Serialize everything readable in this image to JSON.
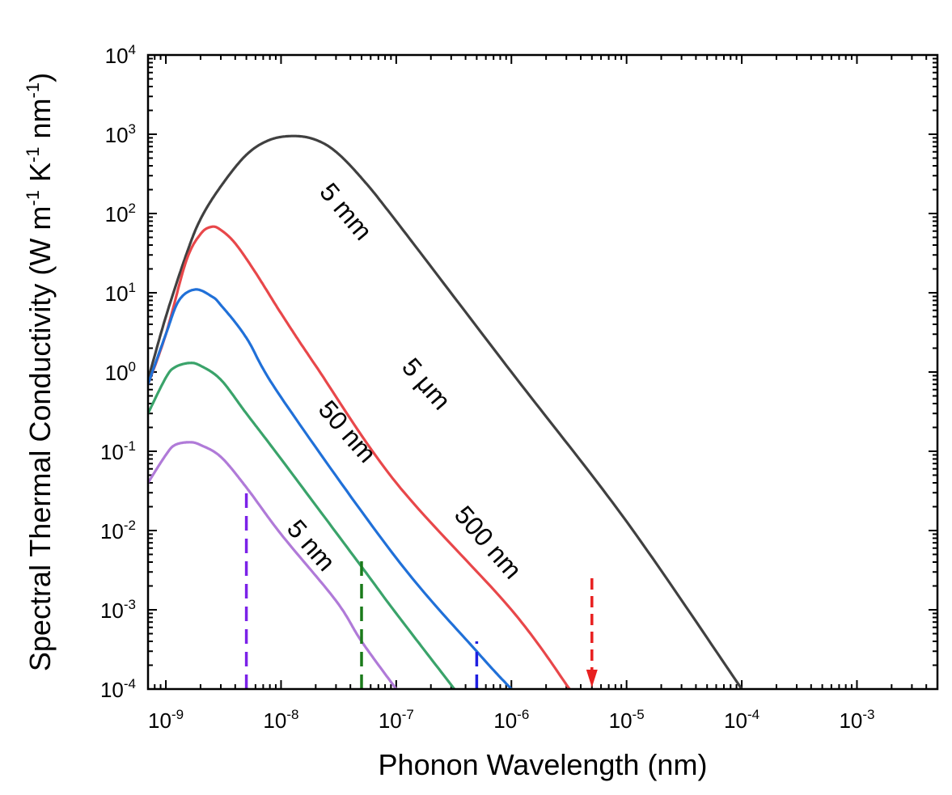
{
  "chart_data": {
    "type": "line",
    "xscale": "log",
    "yscale": "log",
    "xlim": [
      7e-10,
      0.005
    ],
    "ylim": [
      0.0001,
      10000
    ],
    "xlabel": "Phonon Wavelength (nm)",
    "ylabel": {
      "text": "Spectral Thermal Conductivity (W m",
      "sup1": "-1",
      "mid1": " K",
      "sup2": "-1",
      "mid2": " nm",
      "sup3": "-1",
      "end": ")"
    },
    "xticks": [
      {
        "value": 1e-09,
        "base": "10",
        "exp": "-9"
      },
      {
        "value": 1e-08,
        "base": "10",
        "exp": "-8"
      },
      {
        "value": 1e-07,
        "base": "10",
        "exp": "-7"
      },
      {
        "value": 1e-06,
        "base": "10",
        "exp": "-6"
      },
      {
        "value": 1e-05,
        "base": "10",
        "exp": "-5"
      },
      {
        "value": 0.0001,
        "base": "10",
        "exp": "-4"
      },
      {
        "value": 0.001,
        "base": "10",
        "exp": "-3"
      }
    ],
    "yticks": [
      {
        "value": 0.0001,
        "base": "10",
        "exp": "-4"
      },
      {
        "value": 0.001,
        "base": "10",
        "exp": "-3"
      },
      {
        "value": 0.01,
        "base": "10",
        "exp": "-2"
      },
      {
        "value": 0.1,
        "base": "10",
        "exp": "-1"
      },
      {
        "value": 1,
        "base": "10",
        "exp": "0"
      },
      {
        "value": 10,
        "base": "10",
        "exp": "1"
      },
      {
        "value": 100,
        "base": "10",
        "exp": "2"
      },
      {
        "value": 1000,
        "base": "10",
        "exp": "3"
      },
      {
        "value": 10000,
        "base": "10",
        "exp": "4"
      }
    ],
    "series": [
      {
        "name": "5 mm",
        "color": "#404040",
        "x": [
          7e-10,
          1e-09,
          1.5e-09,
          2e-09,
          3e-09,
          5e-09,
          8e-09,
          1.3e-08,
          2e-08,
          3e-08,
          5e-08,
          1e-07,
          1e-06,
          1e-05,
          0.0001
        ],
        "y": [
          0.8,
          5,
          30,
          85,
          220,
          550,
          850,
          950,
          850,
          600,
          280,
          80,
          1.0,
          0.013,
          0.0001
        ]
      },
      {
        "name": "5 μm",
        "color": "#e8474a",
        "x": [
          7e-10,
          1e-09,
          1.5e-09,
          2e-09,
          2.5e-09,
          3e-09,
          4e-09,
          6e-09,
          1e-08,
          2e-08,
          1e-07,
          1e-06,
          3.2e-06
        ],
        "y": [
          0.7,
          3,
          25,
          55,
          68,
          62,
          42,
          18,
          5.5,
          1.2,
          0.04,
          0.001,
          0.0001
        ]
      },
      {
        "name": "500 nm",
        "color": "#2070d8",
        "x": [
          7e-10,
          1e-09,
          1.3e-09,
          1.8e-09,
          2.5e-09,
          3e-09,
          5e-09,
          1e-08,
          1e-07,
          5.2e-07,
          1e-06
        ],
        "y": [
          0.7,
          3,
          8,
          11,
          9,
          7,
          2.7,
          0.48,
          0.0045,
          0.00028,
          0.0001
        ]
      },
      {
        "name": "50 nm",
        "color": "#3aa36a",
        "x": [
          7e-10,
          1e-09,
          1.2e-09,
          1.6e-09,
          2e-09,
          3e-09,
          5e-09,
          1e-08,
          5e-08,
          1e-07,
          3.2e-07
        ],
        "y": [
          0.3,
          0.85,
          1.15,
          1.3,
          1.2,
          0.8,
          0.3,
          0.08,
          0.0035,
          0.0009,
          0.0001
        ]
      },
      {
        "name": "5 nm",
        "color": "#b07ad8",
        "x": [
          7e-10,
          1e-09,
          1.2e-09,
          1.6e-09,
          2e-09,
          3e-09,
          5e-09,
          1e-08,
          3e-08,
          5e-08,
          1e-07
        ],
        "y": [
          0.04,
          0.09,
          0.12,
          0.13,
          0.12,
          0.085,
          0.035,
          0.009,
          0.0013,
          0.0004,
          0.0001
        ]
      }
    ],
    "annotations": [
      {
        "text": "5 mm",
        "series": "5 mm",
        "x": 3.2e-08,
        "y": 90,
        "angle": 50
      },
      {
        "text": "5 μm",
        "series": "5 μm",
        "x": 1.6e-07,
        "y": 0.6,
        "angle": 49
      },
      {
        "text": "500 nm",
        "series": "500 nm",
        "x": 5.5e-07,
        "y": 0.006,
        "angle": 49
      },
      {
        "text": "50 nm",
        "series": "50 nm",
        "x": 3.3e-08,
        "y": 0.15,
        "angle": 49
      },
      {
        "text": "5 nm",
        "series": "5 nm",
        "x": 1.6e-08,
        "y": 0.0055,
        "angle": 49
      }
    ],
    "markers": [
      {
        "name": "5 nm",
        "x": 5e-09,
        "y_from": 0.0001,
        "y_to": 0.035,
        "color": "#7b22e8",
        "dashed": true,
        "arrow": false
      },
      {
        "name": "50 nm",
        "x": 5e-08,
        "y_from": 0.0001,
        "y_to": 0.0042,
        "color": "#1a7a1a",
        "dashed": true,
        "arrow": false
      },
      {
        "name": "500 nm",
        "x": 5e-07,
        "y_from": 0.0001,
        "y_to": 0.0004,
        "color": "#1f1fe0",
        "dashed": true,
        "arrow": false
      },
      {
        "name": "5 μm",
        "x": 5e-06,
        "y_from": 0.0025,
        "y_to": 0.0001,
        "color": "#e82020",
        "dashed": true,
        "arrow": true
      }
    ],
    "grid": false,
    "legend": "none"
  }
}
